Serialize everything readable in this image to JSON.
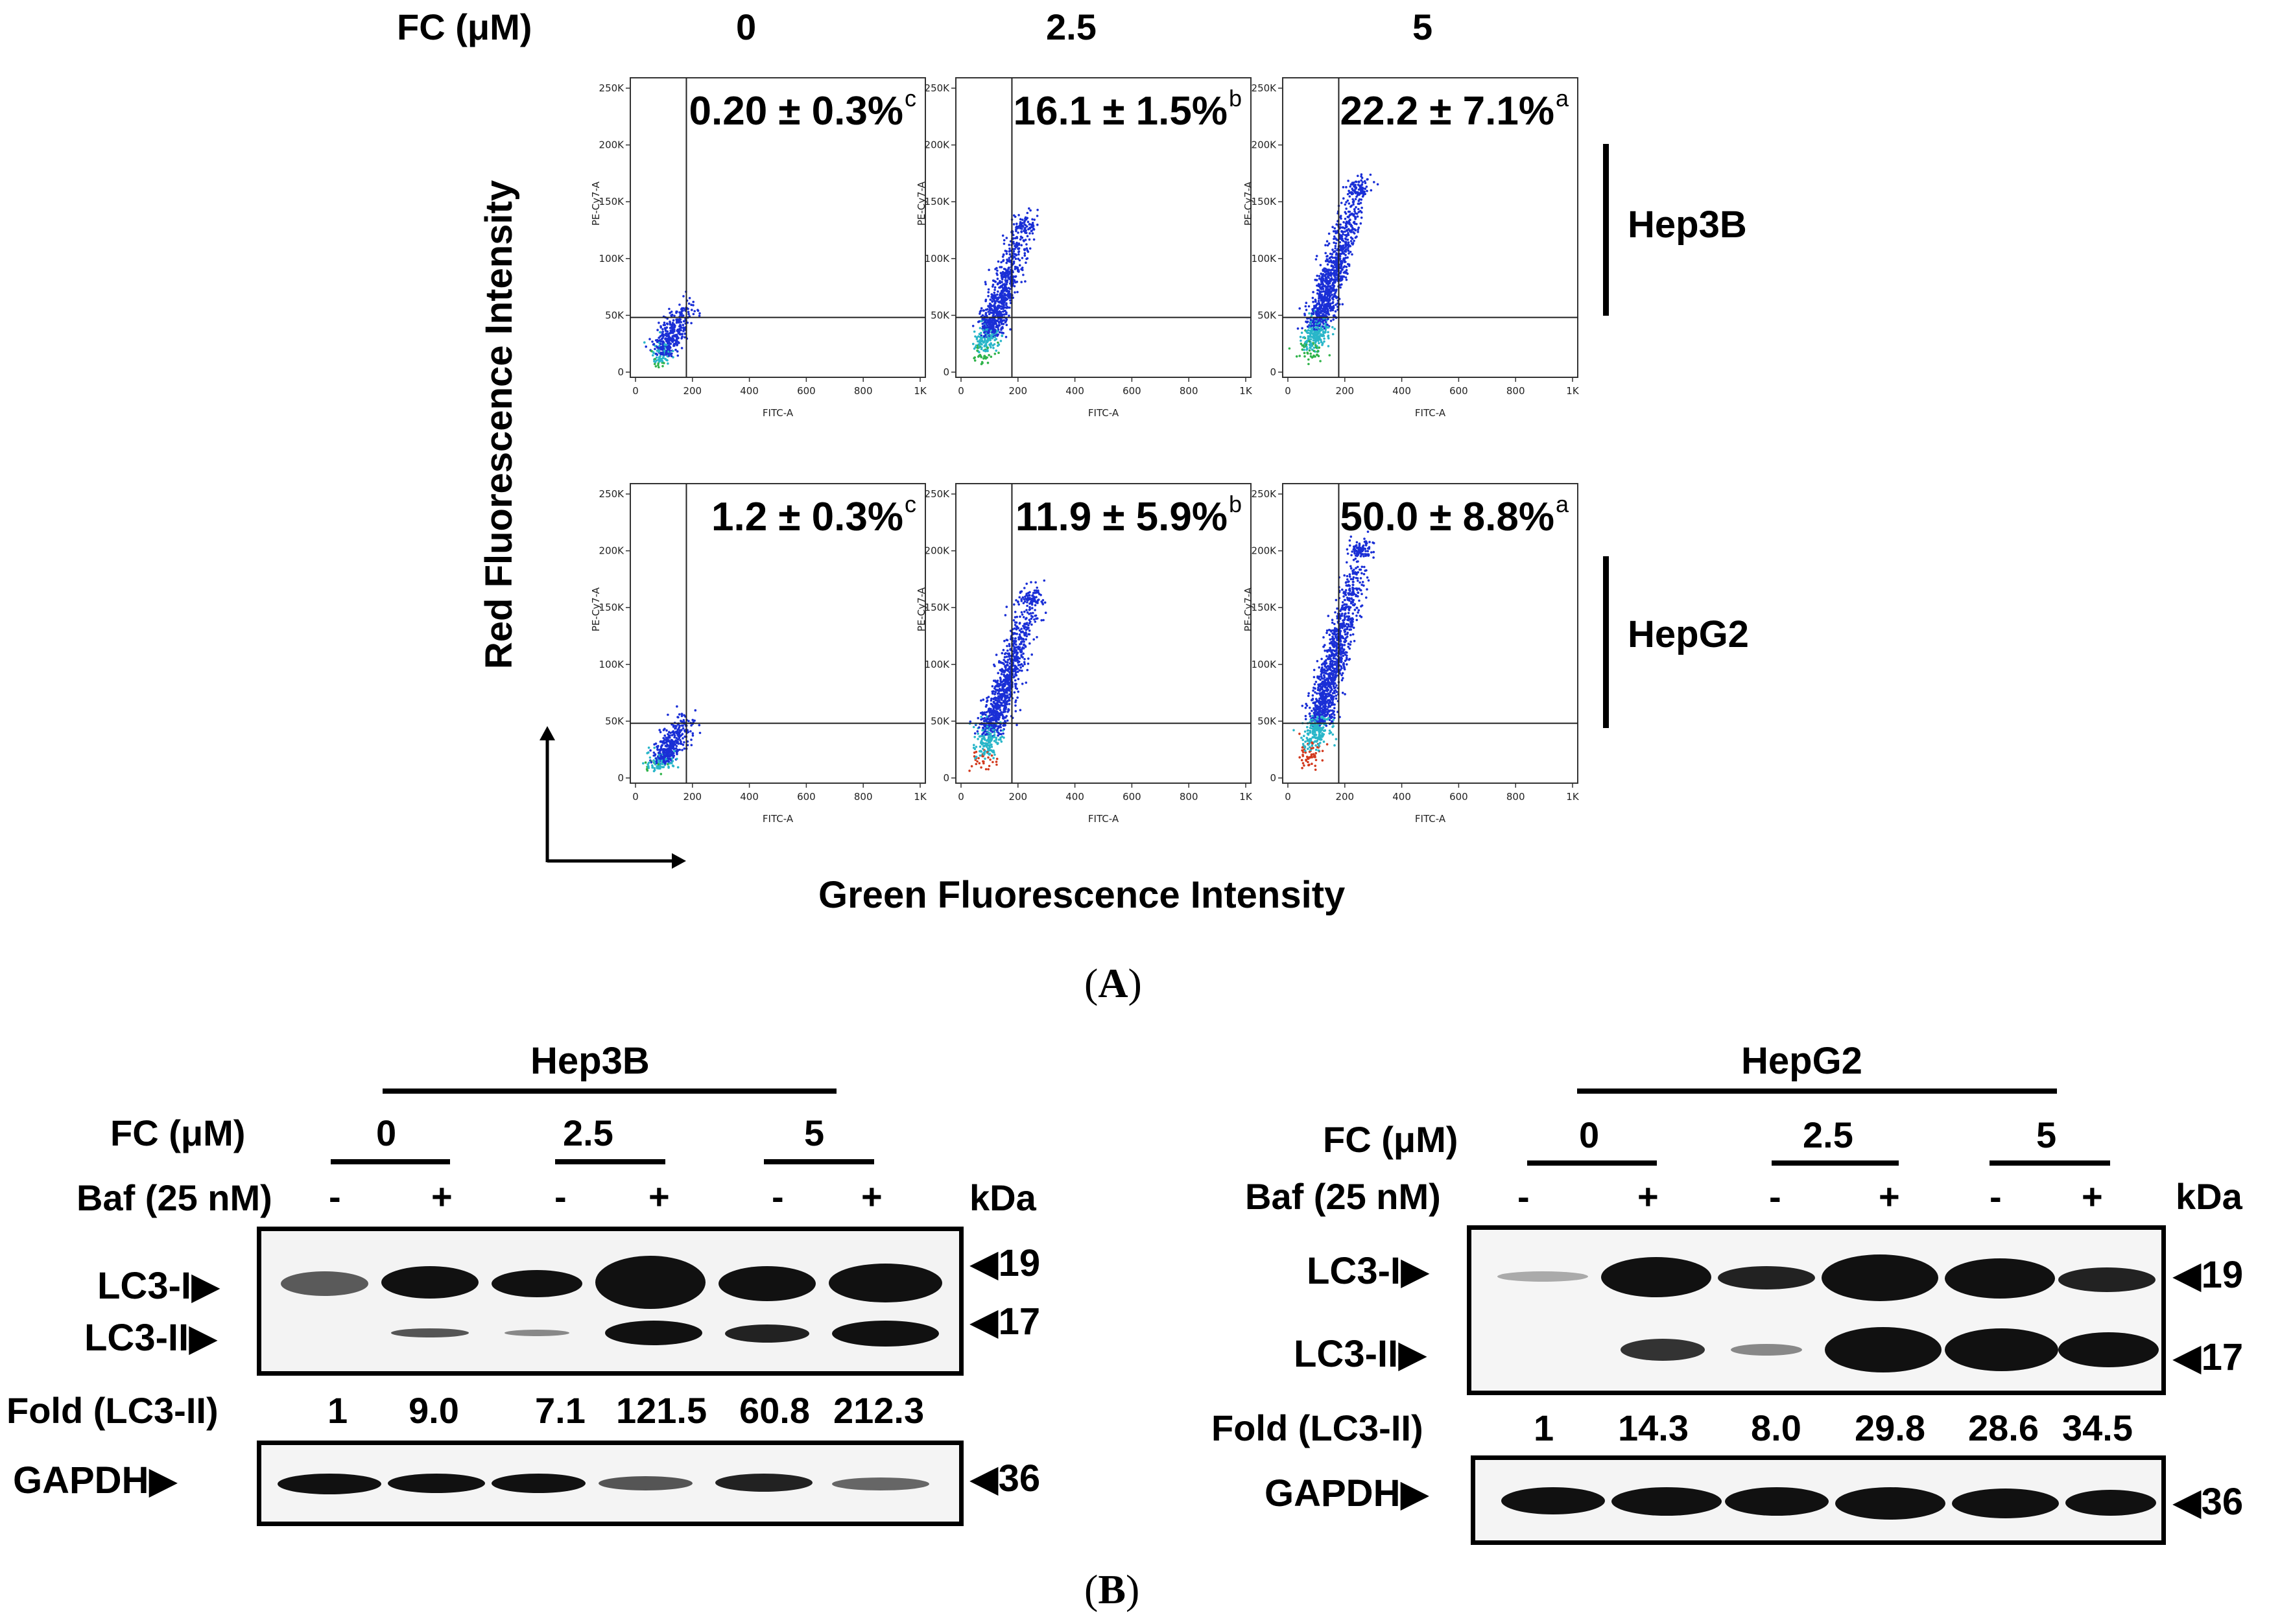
{
  "panelA": {
    "fc_label": "FC (μM)",
    "concentrations": [
      "0",
      "2.5",
      "5"
    ],
    "y_axis_label": "Red Fluorescence Intensity",
    "x_axis_label": "Green Fluorescence Intensity",
    "plot_x_channel": "FITC-A",
    "plot_y_channel": "PE-Cy7-A",
    "x_ticks": [
      "0",
      "200",
      "400",
      "600",
      "800",
      "1K"
    ],
    "y_ticks": [
      "0",
      "50K",
      "100K",
      "150K",
      "200K",
      "250K"
    ],
    "rows": [
      {
        "cell_line": "Hep3B",
        "plots": [
          {
            "value": "0.20 ± 0.3%",
            "sig": "c"
          },
          {
            "value": "16.1 ± 1.5%",
            "sig": "b"
          },
          {
            "value": "22.2 ± 7.1%",
            "sig": "a"
          }
        ]
      },
      {
        "cell_line": "HepG2",
        "plots": [
          {
            "value": "1.2 ± 0.3%",
            "sig": "c"
          },
          {
            "value": "11.9 ± 5.9%",
            "sig": "b"
          },
          {
            "value": "50.0 ± 8.8%",
            "sig": "a"
          }
        ]
      }
    ],
    "label": "A"
  },
  "panelB": {
    "label": "B",
    "fc_label": "FC (μM)",
    "baf_label": "Baf (25 nM)",
    "kda_label": "kDa",
    "concentrations": [
      "0",
      "2.5",
      "5"
    ],
    "baf_signs": [
      "-",
      "+",
      "-",
      "+",
      "-",
      "+"
    ],
    "fold_label": "Fold (LC3-II)",
    "lc3i_label": "LC3-I",
    "lc3ii_label": "LC3-II",
    "gapdh_label": "GAPDH",
    "markers": {
      "lc3i": "19",
      "lc3ii": "17",
      "gapdh": "36"
    },
    "blots": [
      {
        "cell_line": "Hep3B",
        "fold_values": [
          "1",
          "9.0",
          "7.1",
          "121.5",
          "60.8",
          "212.3"
        ]
      },
      {
        "cell_line": "HepG2",
        "fold_values": [
          "1",
          "14.3",
          "8.0",
          "29.8",
          "28.6",
          "34.5"
        ]
      }
    ]
  }
}
